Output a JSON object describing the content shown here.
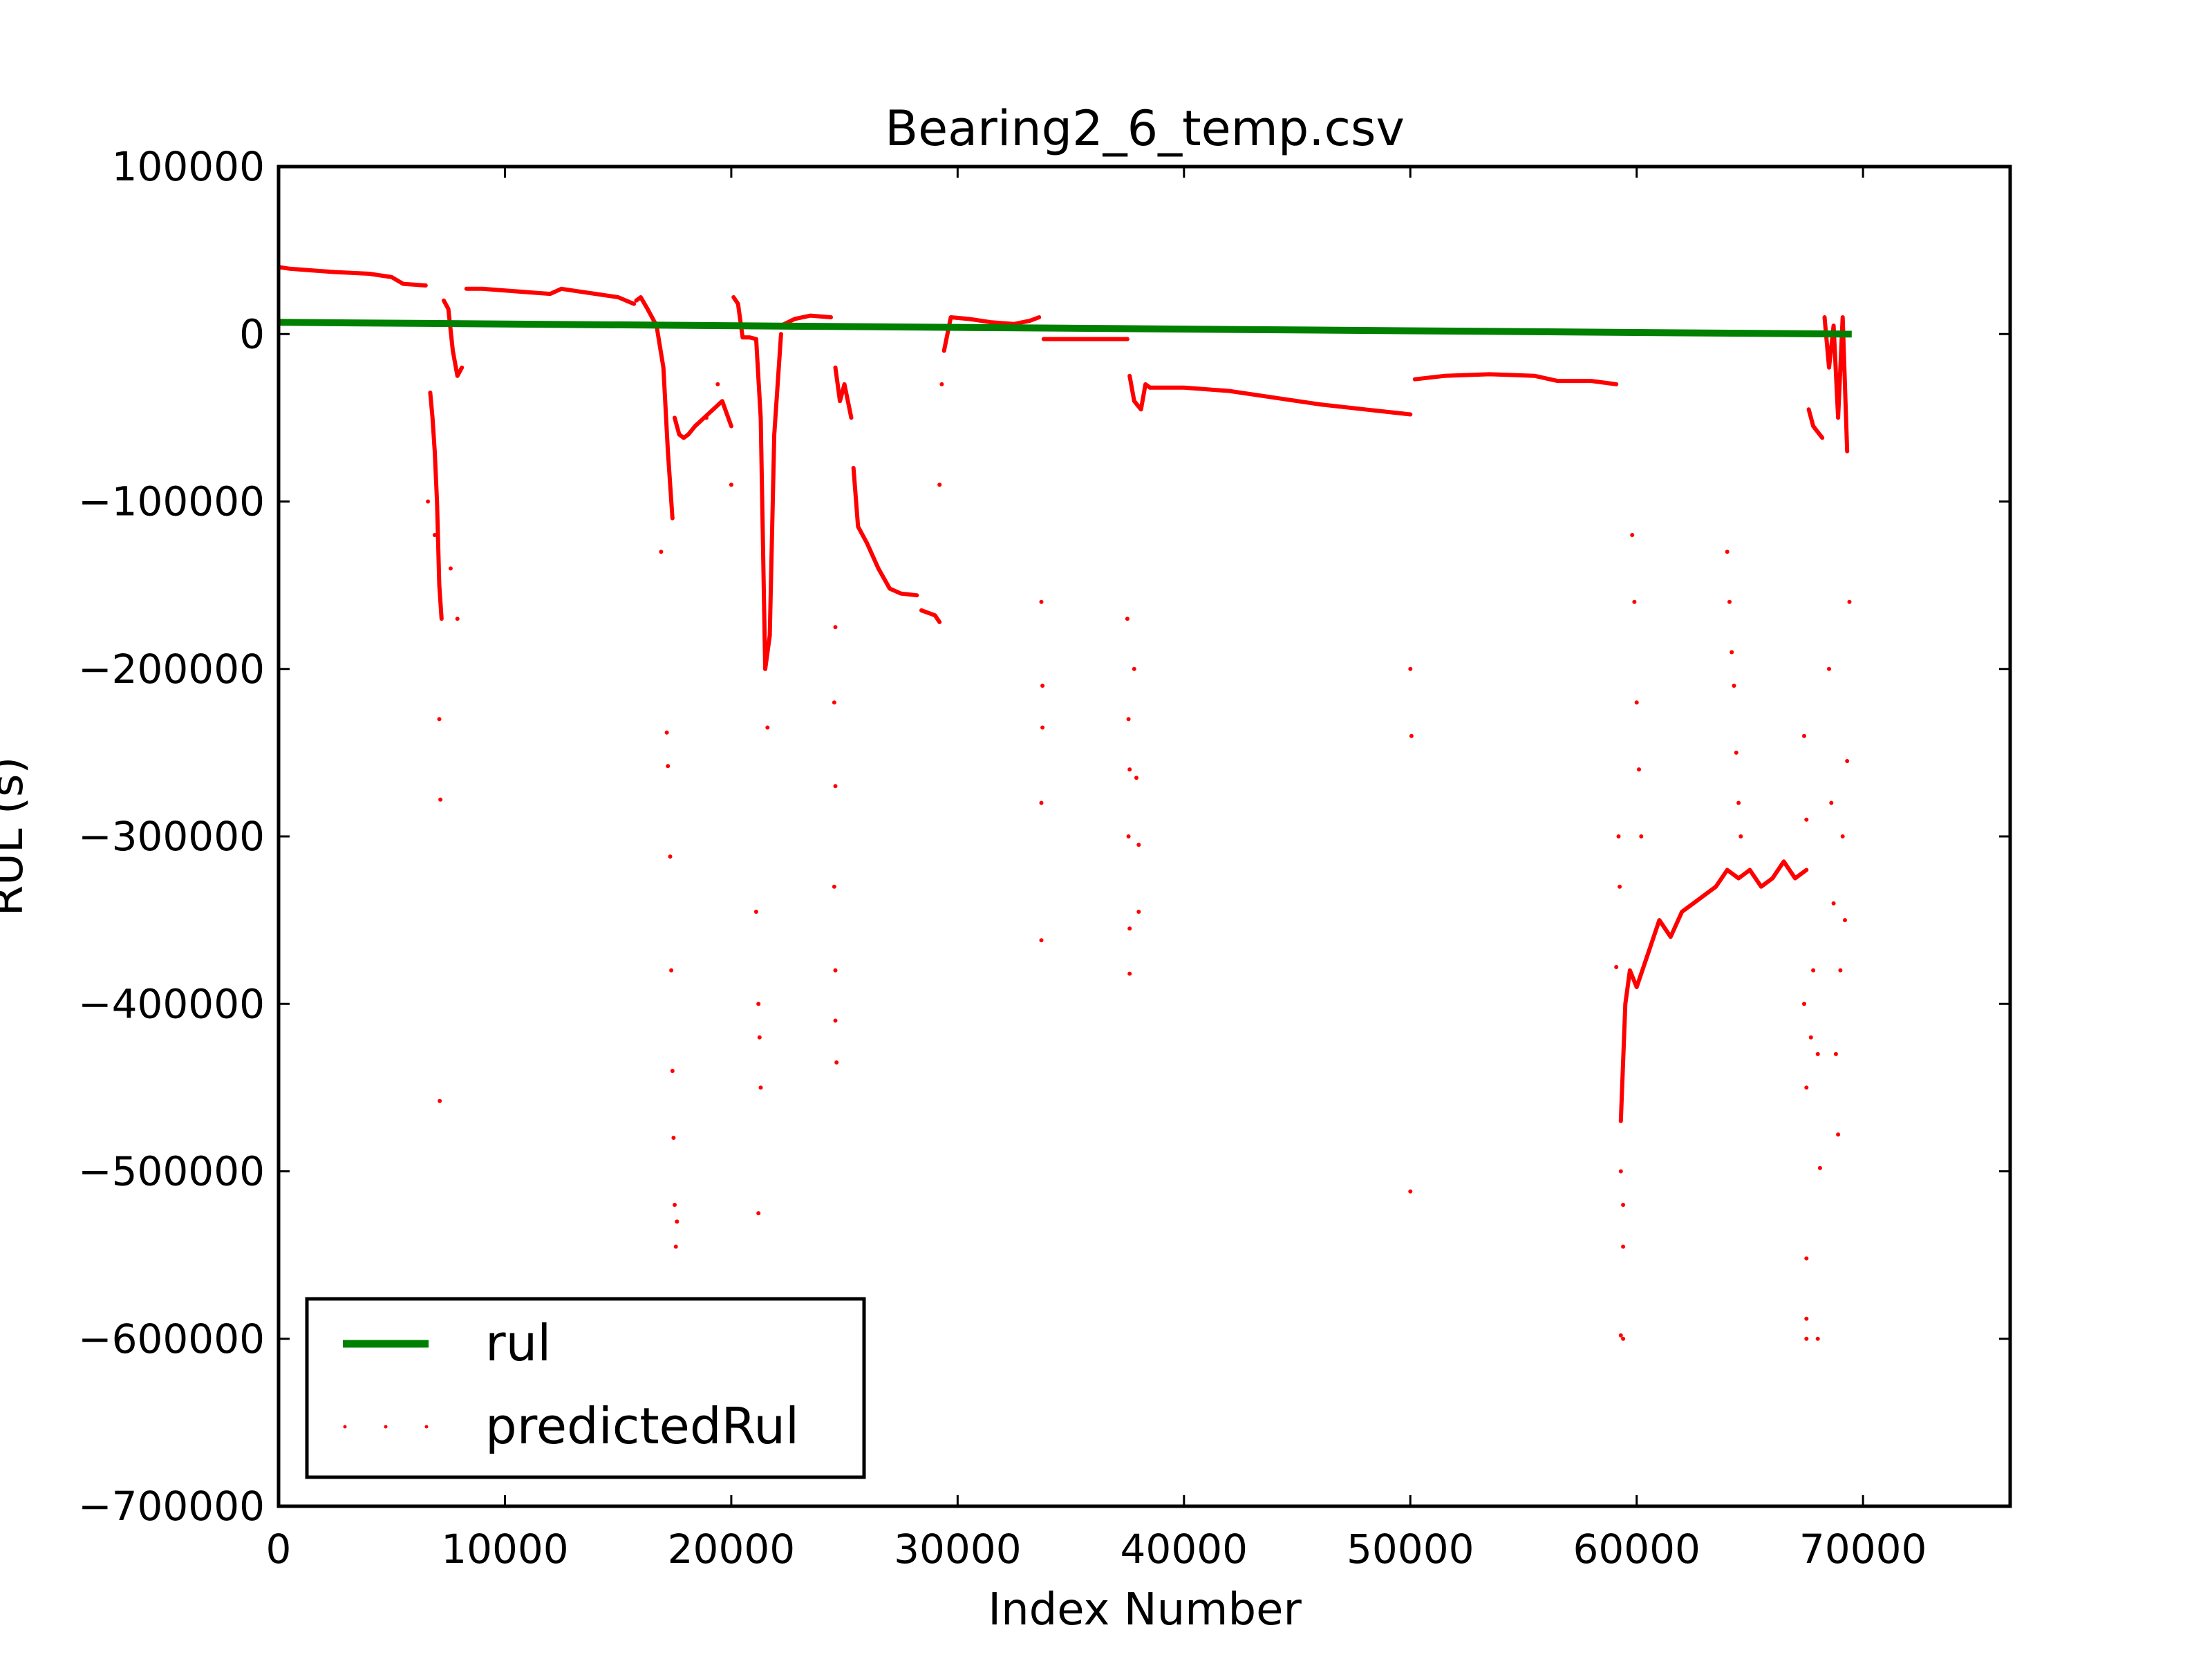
{
  "chart_data": {
    "type": "line",
    "title": "Bearing2_6_temp.csv",
    "xlabel": "Index Number",
    "ylabel": "RUL (s)",
    "xlim": [
      0,
      76500
    ],
    "ylim": [
      -700000,
      100000
    ],
    "xticks": [
      0,
      10000,
      20000,
      30000,
      40000,
      50000,
      60000,
      70000
    ],
    "xtick_labels": [
      "0",
      "10000",
      "20000",
      "30000",
      "40000",
      "50000",
      "60000",
      "70000"
    ],
    "yticks": [
      100000,
      0,
      -100000,
      -200000,
      -300000,
      -400000,
      -500000,
      -600000,
      -700000
    ],
    "ytick_labels": [
      "100000",
      "0",
      "−100000",
      "−200000",
      "−300000",
      "−400000",
      "−500000",
      "−600000",
      "−700000"
    ],
    "grid": false,
    "legend_position": "lower-left",
    "series": [
      {
        "name": "rul",
        "style": "line",
        "color": "#008000",
        "x": [
          0,
          69500
        ],
        "y": [
          7000,
          0
        ]
      },
      {
        "name": "predictedRul",
        "style": "points",
        "color": "#ff0000",
        "segments": [
          {
            "x": [
              0,
              500,
              1500,
              2500,
              4000,
              5000,
              5500,
              6500
            ],
            "y": [
              40000,
              39000,
              38000,
              37000,
              36000,
              34000,
              30000,
              29000
            ]
          },
          {
            "x": [
              6700,
              6800,
              6900,
              7000,
              7100,
              7200
            ],
            "y": [
              -35000,
              -50000,
              -70000,
              -100000,
              -150000,
              -170000
            ]
          },
          {
            "x": [
              7300,
              7500,
              7700,
              7900,
              8100
            ],
            "y": [
              20000,
              15000,
              -10000,
              -25000,
              -20000
            ]
          },
          {
            "x": [
              8300,
              9000,
              10000,
              11000,
              12000,
              12500,
              13000,
              14000,
              15000,
              15700
            ],
            "y": [
              27000,
              27000,
              26000,
              25000,
              24000,
              27000,
              26000,
              24000,
              22000,
              18000
            ]
          },
          {
            "x": [
              15800,
              16000,
              16300,
              16700,
              17000,
              17200,
              17400
            ],
            "y": [
              20000,
              22000,
              15000,
              5000,
              -20000,
              -70000,
              -110000
            ]
          },
          {
            "x": [
              17500,
              17700,
              17900,
              18100,
              18400,
              18800,
              19200,
              19600,
              20000
            ],
            "y": [
              -50000,
              -60000,
              -62000,
              -60000,
              -55000,
              -50000,
              -45000,
              -40000,
              -55000
            ]
          },
          {
            "x": [
              20100,
              20300,
              20500,
              20800,
              21100,
              21300,
              21500,
              21700,
              21900,
              22200
            ],
            "y": [
              22000,
              18000,
              -2000,
              -2000,
              -3000,
              -50000,
              -200000,
              -180000,
              -60000,
              0
            ]
          },
          {
            "x": [
              22200,
              22800,
              23500,
              24400
            ],
            "y": [
              5000,
              9000,
              11000,
              10000
            ]
          },
          {
            "x": [
              24600,
              24800,
              25000,
              25300
            ],
            "y": [
              -20000,
              -40000,
              -30000,
              -50000
            ]
          },
          {
            "x": [
              25400,
              25600,
              26000,
              26500,
              27000,
              27500,
              28200
            ],
            "y": [
              -80000,
              -115000,
              -125000,
              -140000,
              -152000,
              -155000,
              -156000
            ]
          },
          {
            "x": [
              28400,
              28800,
              29000,
              29200
            ],
            "y": [
              -165000,
              -167000,
              -168000,
              -172000
            ]
          },
          {
            "x": [
              29400,
              29700,
              30500,
              31500,
              32500,
              33200,
              33600
            ],
            "y": [
              -10000,
              10000,
              9000,
              7000,
              6000,
              8000,
              10000
            ]
          },
          {
            "x": [
              33800,
              35000,
              36500,
              37500
            ],
            "y": [
              -3000,
              -3000,
              -3000,
              -3000
            ]
          },
          {
            "x": [
              37600,
              37800,
              38100,
              38300,
              38500
            ],
            "y": [
              -25000,
              -40000,
              -45000,
              -30000,
              -32000
            ]
          },
          {
            "x": [
              38500,
              40000,
              42000,
              44000,
              46000,
              48000,
              50000
            ],
            "y": [
              -32000,
              -32000,
              -34000,
              -38000,
              -42000,
              -45000,
              -48000
            ]
          },
          {
            "x": [
              50200,
              51500,
              53500,
              55500,
              56500,
              58000,
              59100
            ],
            "y": [
              -27000,
              -25000,
              -24000,
              -25000,
              -28000,
              -28000,
              -30000
            ]
          },
          {
            "x": [
              59300,
              59500,
              59700,
              60000,
              60500,
              61000,
              61500,
              62000,
              62500,
              63000,
              63500,
              64000,
              64500,
              65000,
              65500,
              66000,
              66500,
              67000,
              67500
            ],
            "y": [
              -470000,
              -400000,
              -380000,
              -390000,
              -370000,
              -350000,
              -360000,
              -345000,
              -340000,
              -335000,
              -330000,
              -320000,
              -325000,
              -320000,
              -330000,
              -325000,
              -315000,
              -325000,
              -320000
            ]
          },
          {
            "x": [
              67600,
              67800,
              68200
            ],
            "y": [
              -45000,
              -55000,
              -62000
            ]
          },
          {
            "x": [
              68300,
              68500,
              68700,
              68900,
              69100,
              69300
            ],
            "y": [
              10000,
              -20000,
              5000,
              -50000,
              10000,
              -70000
            ]
          }
        ],
        "scatter": [
          [
            6600,
            -100000
          ],
          [
            6900,
            -120000
          ],
          [
            7100,
            -230000
          ],
          [
            7150,
            -278000
          ],
          [
            7120,
            -458000
          ],
          [
            7600,
            -140000
          ],
          [
            7900,
            -170000
          ],
          [
            16900,
            -130000
          ],
          [
            17150,
            -238000
          ],
          [
            17200,
            -258000
          ],
          [
            17300,
            -312000
          ],
          [
            17350,
            -380000
          ],
          [
            17400,
            -440000
          ],
          [
            17450,
            -480000
          ],
          [
            17500,
            -520000
          ],
          [
            17550,
            -545000
          ],
          [
            17600,
            -530000
          ],
          [
            18900,
            -50000
          ],
          [
            19400,
            -30000
          ],
          [
            20000,
            -90000
          ],
          [
            21100,
            -345000
          ],
          [
            21200,
            -400000
          ],
          [
            21250,
            -420000
          ],
          [
            21300,
            -450000
          ],
          [
            21200,
            -525000
          ],
          [
            21600,
            -235000
          ],
          [
            24600,
            -175000
          ],
          [
            24550,
            -220000
          ],
          [
            24600,
            -270000
          ],
          [
            24550,
            -330000
          ],
          [
            24600,
            -380000
          ],
          [
            24600,
            -410000
          ],
          [
            24650,
            -435000
          ],
          [
            29200,
            -90000
          ],
          [
            29300,
            -30000
          ],
          [
            33700,
            -160000
          ],
          [
            33750,
            -210000
          ],
          [
            33750,
            -235000
          ],
          [
            33700,
            -280000
          ],
          [
            33700,
            -362000
          ],
          [
            37500,
            -170000
          ],
          [
            37550,
            -230000
          ],
          [
            37600,
            -260000
          ],
          [
            37550,
            -300000
          ],
          [
            37600,
            -355000
          ],
          [
            37600,
            -382000
          ],
          [
            37800,
            -200000
          ],
          [
            37900,
            -265000
          ],
          [
            38000,
            -305000
          ],
          [
            38000,
            -345000
          ],
          [
            50000,
            -200000
          ],
          [
            50050,
            -240000
          ],
          [
            50000,
            -512000
          ],
          [
            59100,
            -378000
          ],
          [
            59200,
            -300000
          ],
          [
            59250,
            -330000
          ],
          [
            59300,
            -500000
          ],
          [
            59400,
            -520000
          ],
          [
            59400,
            -545000
          ],
          [
            59300,
            -598000
          ],
          [
            59400,
            -600000
          ],
          [
            59800,
            -120000
          ],
          [
            59900,
            -160000
          ],
          [
            60000,
            -220000
          ],
          [
            60100,
            -260000
          ],
          [
            60200,
            -300000
          ],
          [
            64000,
            -130000
          ],
          [
            64100,
            -160000
          ],
          [
            64200,
            -190000
          ],
          [
            64300,
            -210000
          ],
          [
            64400,
            -250000
          ],
          [
            64500,
            -280000
          ],
          [
            64600,
            -300000
          ],
          [
            67400,
            -240000
          ],
          [
            67500,
            -290000
          ],
          [
            67400,
            -400000
          ],
          [
            67500,
            -450000
          ],
          [
            67500,
            -552000
          ],
          [
            67500,
            -588000
          ],
          [
            67500,
            -600000
          ],
          [
            67700,
            -420000
          ],
          [
            67800,
            -380000
          ],
          [
            68000,
            -430000
          ],
          [
            68100,
            -498000
          ],
          [
            68000,
            -600000
          ],
          [
            68500,
            -200000
          ],
          [
            68600,
            -280000
          ],
          [
            68700,
            -340000
          ],
          [
            68800,
            -430000
          ],
          [
            68900,
            -478000
          ],
          [
            69000,
            -380000
          ],
          [
            69100,
            -300000
          ],
          [
            69200,
            -350000
          ],
          [
            69300,
            -255000
          ],
          [
            69400,
            -160000
          ]
        ]
      }
    ]
  },
  "legend": {
    "items": [
      {
        "label": "rul",
        "color": "#008000"
      },
      {
        "label": "predictedRul",
        "color": "#ff0000"
      }
    ]
  }
}
